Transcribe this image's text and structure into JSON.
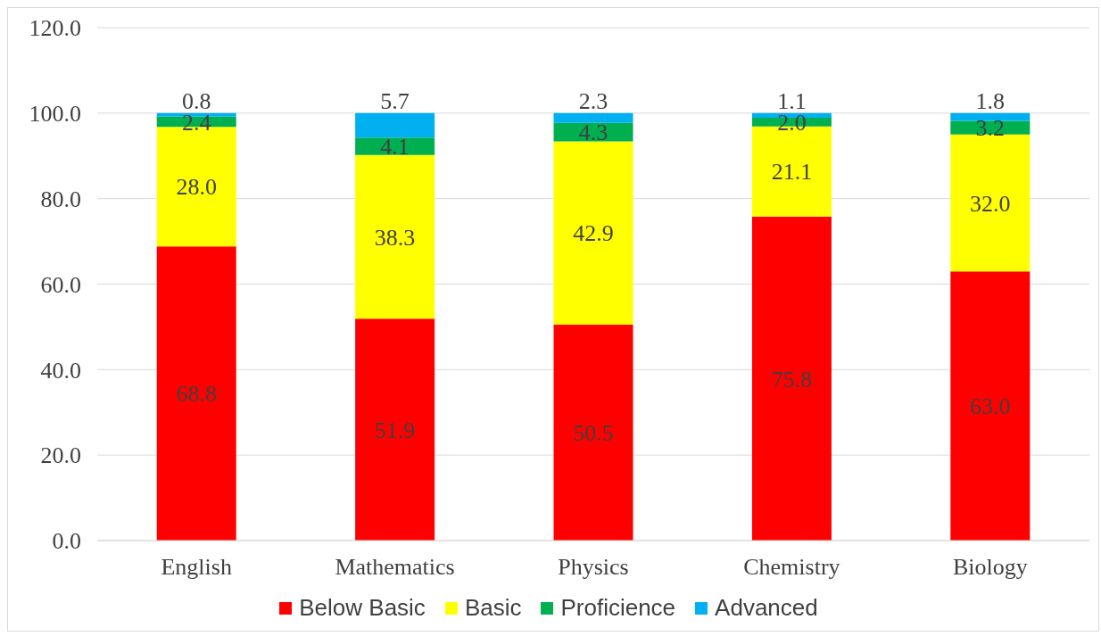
{
  "chart_data": {
    "type": "bar",
    "stacked": true,
    "categories": [
      "English",
      "Mathematics",
      "Physics",
      "Chemistry",
      "Biology"
    ],
    "series": [
      {
        "name": "Below Basic",
        "color": "#ff0000",
        "values": [
          68.8,
          51.9,
          50.5,
          75.8,
          63.0
        ],
        "value_labels": [
          "68.8",
          "51.9",
          "50.5",
          "75.8",
          "63.0"
        ]
      },
      {
        "name": "Basic",
        "color": "#ffff00",
        "values": [
          28.0,
          38.3,
          42.9,
          21.1,
          32.0
        ],
        "value_labels": [
          "28.0",
          "38.3",
          "42.9",
          "21.1",
          "32.0"
        ]
      },
      {
        "name": "Proficience",
        "color": "#00b050",
        "values": [
          2.4,
          4.1,
          4.3,
          2.0,
          3.2
        ],
        "value_labels": [
          "2.4",
          "4.1",
          "4.3",
          "2.0",
          "3.2"
        ]
      },
      {
        "name": "Advanced",
        "color": "#00b0f0",
        "values": [
          0.8,
          5.7,
          2.3,
          1.1,
          1.8
        ],
        "value_labels": [
          "0.8",
          "5.7",
          "2.3",
          "1.1",
          "1.8"
        ]
      }
    ],
    "ylim": [
      0,
      120
    ],
    "yticks": [
      {
        "value": 0,
        "label": "0.0"
      },
      {
        "value": 20,
        "label": "20.0"
      },
      {
        "value": 40,
        "label": "40.0"
      },
      {
        "value": 60,
        "label": "60.0"
      },
      {
        "value": 80,
        "label": "80.0"
      },
      {
        "value": 100,
        "label": "100.0"
      },
      {
        "value": 120,
        "label": "120.0"
      }
    ],
    "grid": "y",
    "legend": "bottom"
  }
}
